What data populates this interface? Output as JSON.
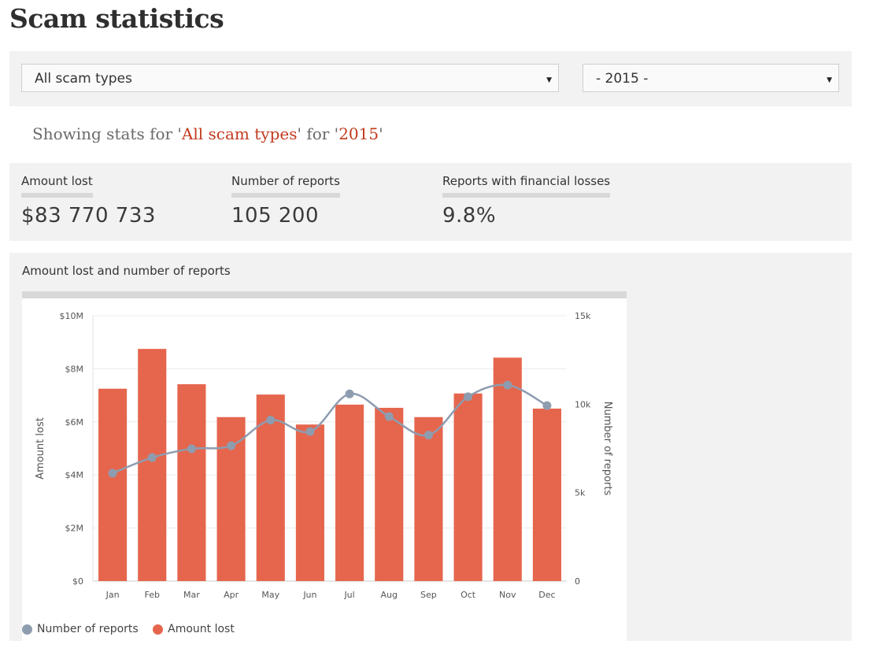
{
  "page": {
    "title": "Scam statistics"
  },
  "filters": {
    "scam_type": {
      "value": "All scam types"
    },
    "year": {
      "value": "- 2015 -"
    }
  },
  "showing": {
    "prefix": "Showing stats for '",
    "scam_type": "All scam types",
    "middle": "' for '",
    "year": "2015",
    "suffix": "'"
  },
  "stats": [
    {
      "label": "Amount lost",
      "value": "$83 770 733"
    },
    {
      "label": "Number of reports",
      "value": "105 200"
    },
    {
      "label": "Reports with financial losses",
      "value": "9.8%"
    }
  ],
  "colors": {
    "bar": "#e5664d",
    "line": "#8e9cb0",
    "title_highlight": "#c23a1e"
  },
  "chart_data": {
    "type": "bar",
    "title": "Amount lost and number of reports",
    "categories": [
      "Jan",
      "Feb",
      "Mar",
      "Apr",
      "May",
      "Jun",
      "Jul",
      "Aug",
      "Sep",
      "Oct",
      "Nov",
      "Dec"
    ],
    "series": [
      {
        "name": "Amount lost",
        "type": "bar",
        "axis": "left",
        "values": [
          7250000,
          8750000,
          7420000,
          6180000,
          7030000,
          5900000,
          6650000,
          6530000,
          6180000,
          7070000,
          8420000,
          6500000
        ]
      },
      {
        "name": "Number of reports",
        "type": "line",
        "axis": "right",
        "values": [
          6100,
          6980,
          7480,
          7650,
          9100,
          8450,
          10580,
          9300,
          8250,
          10420,
          11080,
          9920
        ]
      }
    ],
    "ylabel": "Amount lost",
    "y2label": "Number of reports",
    "ylim": [
      0,
      10000000
    ],
    "y2lim": [
      0,
      15000
    ],
    "yticks": [
      "$0",
      "$2M",
      "$4M",
      "$6M",
      "$8M",
      "$10M"
    ],
    "y2ticks": [
      "0",
      "5k",
      "10k",
      "15k"
    ],
    "grid": true,
    "legend": "bottom-left"
  }
}
